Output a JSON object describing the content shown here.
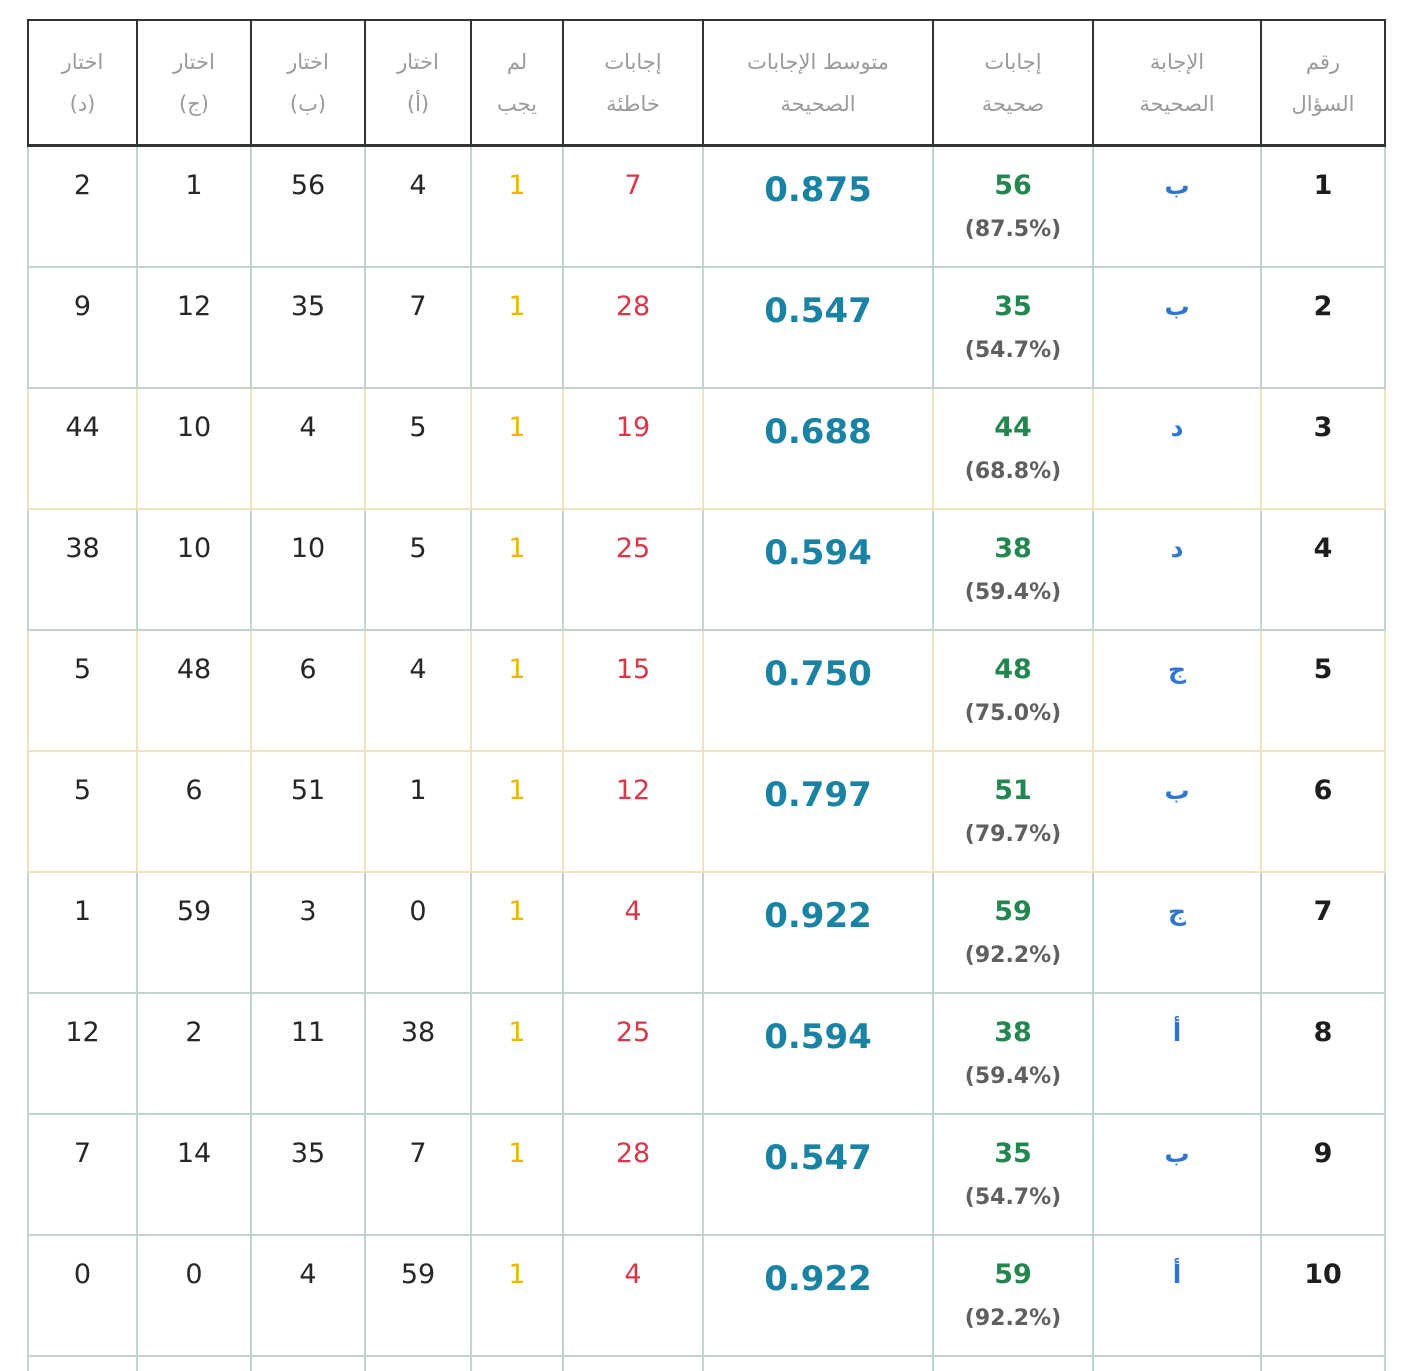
{
  "headers": [
    [
      "رقم",
      "السؤال"
    ],
    [
      "الإجابة",
      "الصحيحة"
    ],
    [
      "إجابات",
      "صحيحة"
    ],
    [
      "متوسط الإجابات",
      "الصحيحة"
    ],
    [
      "إجابات",
      "خاطئة"
    ],
    [
      "لم",
      "يجب"
    ],
    [
      "اختار",
      "(أ)"
    ],
    [
      "اختار",
      "(ب)"
    ],
    [
      "اختار",
      "(ج)"
    ],
    [
      "اختار",
      "(د)"
    ]
  ],
  "rows": [
    {
      "q": "1",
      "correct": "ب",
      "count": "56",
      "pct": "(87.5%)",
      "avg": "0.875",
      "wrong": "7",
      "no": "1",
      "a": "4",
      "b": "56",
      "c": "1",
      "d": "2"
    },
    {
      "q": "2",
      "correct": "ب",
      "count": "35",
      "pct": "(54.7%)",
      "avg": "0.547",
      "wrong": "28",
      "no": "1",
      "a": "7",
      "b": "35",
      "c": "12",
      "d": "9"
    },
    {
      "q": "3",
      "correct": "د",
      "count": "44",
      "pct": "(68.8%)",
      "avg": "0.688",
      "wrong": "19",
      "no": "1",
      "a": "5",
      "b": "4",
      "c": "10",
      "d": "44"
    },
    {
      "q": "4",
      "correct": "د",
      "count": "38",
      "pct": "(59.4%)",
      "avg": "0.594",
      "wrong": "25",
      "no": "1",
      "a": "5",
      "b": "10",
      "c": "10",
      "d": "38"
    },
    {
      "q": "5",
      "correct": "ج",
      "count": "48",
      "pct": "(75.0%)",
      "avg": "0.750",
      "wrong": "15",
      "no": "1",
      "a": "4",
      "b": "6",
      "c": "48",
      "d": "5"
    },
    {
      "q": "6",
      "correct": "ب",
      "count": "51",
      "pct": "(79.7%)",
      "avg": "0.797",
      "wrong": "12",
      "no": "1",
      "a": "1",
      "b": "51",
      "c": "6",
      "d": "5"
    },
    {
      "q": "7",
      "correct": "ج",
      "count": "59",
      "pct": "(92.2%)",
      "avg": "0.922",
      "wrong": "4",
      "no": "1",
      "a": "0",
      "b": "3",
      "c": "59",
      "d": "1"
    },
    {
      "q": "8",
      "correct": "أ",
      "count": "38",
      "pct": "(59.4%)",
      "avg": "0.594",
      "wrong": "25",
      "no": "1",
      "a": "38",
      "b": "11",
      "c": "2",
      "d": "12"
    },
    {
      "q": "9",
      "correct": "ب",
      "count": "35",
      "pct": "(54.7%)",
      "avg": "0.547",
      "wrong": "28",
      "no": "1",
      "a": "7",
      "b": "35",
      "c": "14",
      "d": "7"
    },
    {
      "q": "10",
      "correct": "أ",
      "count": "59",
      "pct": "(92.2%)",
      "avg": "0.922",
      "wrong": "4",
      "no": "1",
      "a": "59",
      "b": "4",
      "c": "0",
      "d": "0"
    }
  ],
  "colors": {
    "header_text": "#9a9a9a",
    "answer_letter": "#2f76d2",
    "correct_count": "#23864f",
    "average": "#1a82a2",
    "wrong_count": "#d6384a",
    "no_answer": "#efb400",
    "border_normal": "#c3d3cd",
    "border_highlight": "#eee2c0"
  }
}
